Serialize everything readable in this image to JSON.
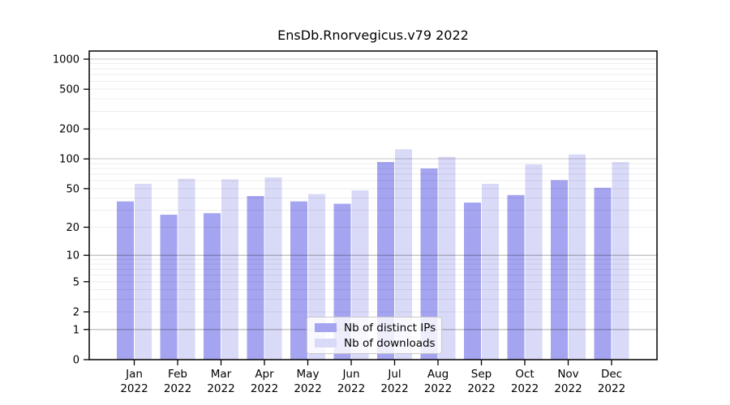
{
  "title": "EnsDb.Rnorvegicus.v79 2022",
  "chart_data": {
    "type": "bar",
    "title": "EnsDb.Rnorvegicus.v79 2022",
    "scale": "log1p",
    "grid": "on",
    "legend_position": "bottom-center",
    "ylim": [
      0,
      1000
    ],
    "yticks": [
      0,
      1,
      2,
      5,
      10,
      20,
      50,
      100,
      200,
      500,
      1000
    ],
    "categories": [
      "Jan",
      "Feb",
      "Mar",
      "Apr",
      "May",
      "Jun",
      "Jul",
      "Aug",
      "Sep",
      "Oct",
      "Nov",
      "Dec"
    ],
    "year": "2022",
    "series": [
      {
        "name": "Nb of distinct IPs",
        "color": "#a4a4f0",
        "values": [
          37,
          27,
          28,
          42,
          37,
          35,
          93,
          80,
          36,
          43,
          61,
          51
        ]
      },
      {
        "name": "Nb of downloads",
        "color": "#d9d9f8",
        "values": [
          56,
          63,
          62,
          65,
          44,
          48,
          125,
          105,
          56,
          88,
          111,
          93
        ]
      }
    ],
    "colors": {
      "axis": "#000000",
      "major_grid": "rgba(0,0,0,0.22)",
      "minor_grid": "rgba(0,0,0,0.07)",
      "text": "#000000"
    }
  }
}
